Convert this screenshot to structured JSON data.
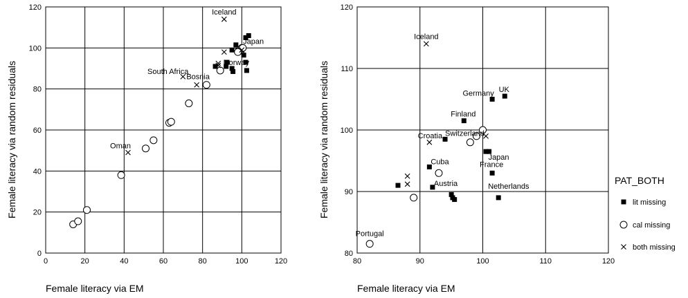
{
  "chart_data": [
    {
      "type": "scatter",
      "xlabel": "Female literacy via EM",
      "ylabel": "Female literacy via random residuals",
      "xlim": [
        0,
        120
      ],
      "ylim": [
        0,
        120
      ],
      "xticks": [
        0,
        20,
        40,
        60,
        80,
        100,
        120
      ],
      "yticks": [
        0,
        20,
        40,
        60,
        80,
        100,
        120
      ],
      "grid": true,
      "series": [
        {
          "name": "lit missing",
          "marker": "square",
          "points": [
            {
              "x": 95,
              "y": 99
            },
            {
              "x": 97,
              "y": 101.5
            },
            {
              "x": 98,
              "y": 99
            },
            {
              "x": 99,
              "y": 98
            },
            {
              "x": 100,
              "y": 99
            },
            {
              "x": 101,
              "y": 96.5
            },
            {
              "x": 102,
              "y": 105
            },
            {
              "x": 103.5,
              "y": 106
            },
            {
              "x": 102,
              "y": 93
            },
            {
              "x": 102.5,
              "y": 89
            },
            {
              "x": 92,
              "y": 91
            },
            {
              "x": 95,
              "y": 90
            },
            {
              "x": 95.5,
              "y": 88.5
            },
            {
              "x": 92.5,
              "y": 93
            },
            {
              "x": 99,
              "y": 98.5
            },
            {
              "x": 86.5,
              "y": 91
            }
          ]
        },
        {
          "name": "cal missing",
          "marker": "circle",
          "points": [
            {
              "x": 14,
              "y": 14
            },
            {
              "x": 16.5,
              "y": 15.5
            },
            {
              "x": 21,
              "y": 21
            },
            {
              "x": 38.5,
              "y": 38
            },
            {
              "x": 51,
              "y": 51
            },
            {
              "x": 55,
              "y": 55
            },
            {
              "x": 63,
              "y": 63.5
            },
            {
              "x": 64,
              "y": 64
            },
            {
              "x": 73,
              "y": 73
            },
            {
              "x": 82,
              "y": 82
            },
            {
              "x": 89,
              "y": 89
            },
            {
              "x": 99,
              "y": 99
            },
            {
              "x": 100,
              "y": 100
            },
            {
              "x": 100.5,
              "y": 100
            },
            {
              "x": 98,
              "y": 98
            }
          ]
        },
        {
          "name": "both missing",
          "marker": "x",
          "points": [
            {
              "x": 42,
              "y": 49
            },
            {
              "x": 70,
              "y": 86
            },
            {
              "x": 77,
              "y": 82
            },
            {
              "x": 91,
              "y": 114
            },
            {
              "x": 91,
              "y": 98
            },
            {
              "x": 88,
              "y": 92.5
            },
            {
              "x": 88,
              "y": 91.5
            },
            {
              "x": 100,
              "y": 99
            }
          ]
        }
      ],
      "annotations": [
        {
          "text": "Iceland",
          "x": 91,
          "y": 114
        },
        {
          "text": "Japan",
          "x": 101,
          "y": 96.5
        },
        {
          "text": "Norway",
          "x": 92,
          "y": 91
        },
        {
          "text": "South Africa",
          "x": 70,
          "y": 86
        },
        {
          "text": "Bosnia",
          "x": 77,
          "y": 82
        },
        {
          "text": "Oman",
          "x": 42,
          "y": 49
        }
      ]
    },
    {
      "type": "scatter",
      "xlabel": "Female literacy via EM",
      "ylabel": "Female literacy via random residuals",
      "xlim": [
        80,
        120
      ],
      "ylim": [
        80,
        120
      ],
      "xticks": [
        80,
        90,
        100,
        110,
        120
      ],
      "yticks": [
        80,
        90,
        100,
        110,
        120
      ],
      "grid": true,
      "legend": {
        "title": "PAT_BOTH",
        "position": "right"
      },
      "series": [
        {
          "name": "lit missing",
          "marker": "square",
          "points": [
            {
              "x": 101.5,
              "y": 105
            },
            {
              "x": 103.5,
              "y": 105.5
            },
            {
              "x": 97,
              "y": 101.5
            },
            {
              "x": 94,
              "y": 98.5
            },
            {
              "x": 98,
              "y": 98
            },
            {
              "x": 100.5,
              "y": 96.5
            },
            {
              "x": 101,
              "y": 96.5
            },
            {
              "x": 101.5,
              "y": 93
            },
            {
              "x": 91.5,
              "y": 94
            },
            {
              "x": 86.5,
              "y": 91
            },
            {
              "x": 92,
              "y": 90.7
            },
            {
              "x": 95,
              "y": 89.5
            },
            {
              "x": 95.2,
              "y": 89
            },
            {
              "x": 95.5,
              "y": 88.7
            },
            {
              "x": 102.5,
              "y": 89
            }
          ]
        },
        {
          "name": "cal missing",
          "marker": "circle",
          "points": [
            {
              "x": 82,
              "y": 81.5
            },
            {
              "x": 89,
              "y": 89
            },
            {
              "x": 93,
              "y": 93
            },
            {
              "x": 98,
              "y": 98
            },
            {
              "x": 99,
              "y": 99
            },
            {
              "x": 100,
              "y": 100
            }
          ]
        },
        {
          "name": "both missing",
          "marker": "x",
          "points": [
            {
              "x": 91,
              "y": 114
            },
            {
              "x": 91.5,
              "y": 98
            },
            {
              "x": 88,
              "y": 92.5
            },
            {
              "x": 88,
              "y": 91.2
            },
            {
              "x": 100.5,
              "y": 99
            }
          ]
        }
      ],
      "annotations": [
        {
          "text": "Iceland",
          "x": 91,
          "y": 114
        },
        {
          "text": "UK",
          "x": 103.5,
          "y": 105.5
        },
        {
          "text": "Germany",
          "x": 101.5,
          "y": 105
        },
        {
          "text": "Finland",
          "x": 97,
          "y": 101.5
        },
        {
          "text": "Croatia",
          "x": 91.5,
          "y": 98
        },
        {
          "text": "Switzerland",
          "x": 94,
          "y": 98.5
        },
        {
          "text": "Japan",
          "x": 101,
          "y": 96.5
        },
        {
          "text": "France",
          "x": 101.5,
          "y": 93
        },
        {
          "text": "Cuba",
          "x": 91.5,
          "y": 94
        },
        {
          "text": "Austria",
          "x": 92,
          "y": 90.7
        },
        {
          "text": "Netherlands",
          "x": 102.5,
          "y": 89
        },
        {
          "text": "Portugal",
          "x": 82,
          "y": 81.5
        }
      ]
    }
  ]
}
